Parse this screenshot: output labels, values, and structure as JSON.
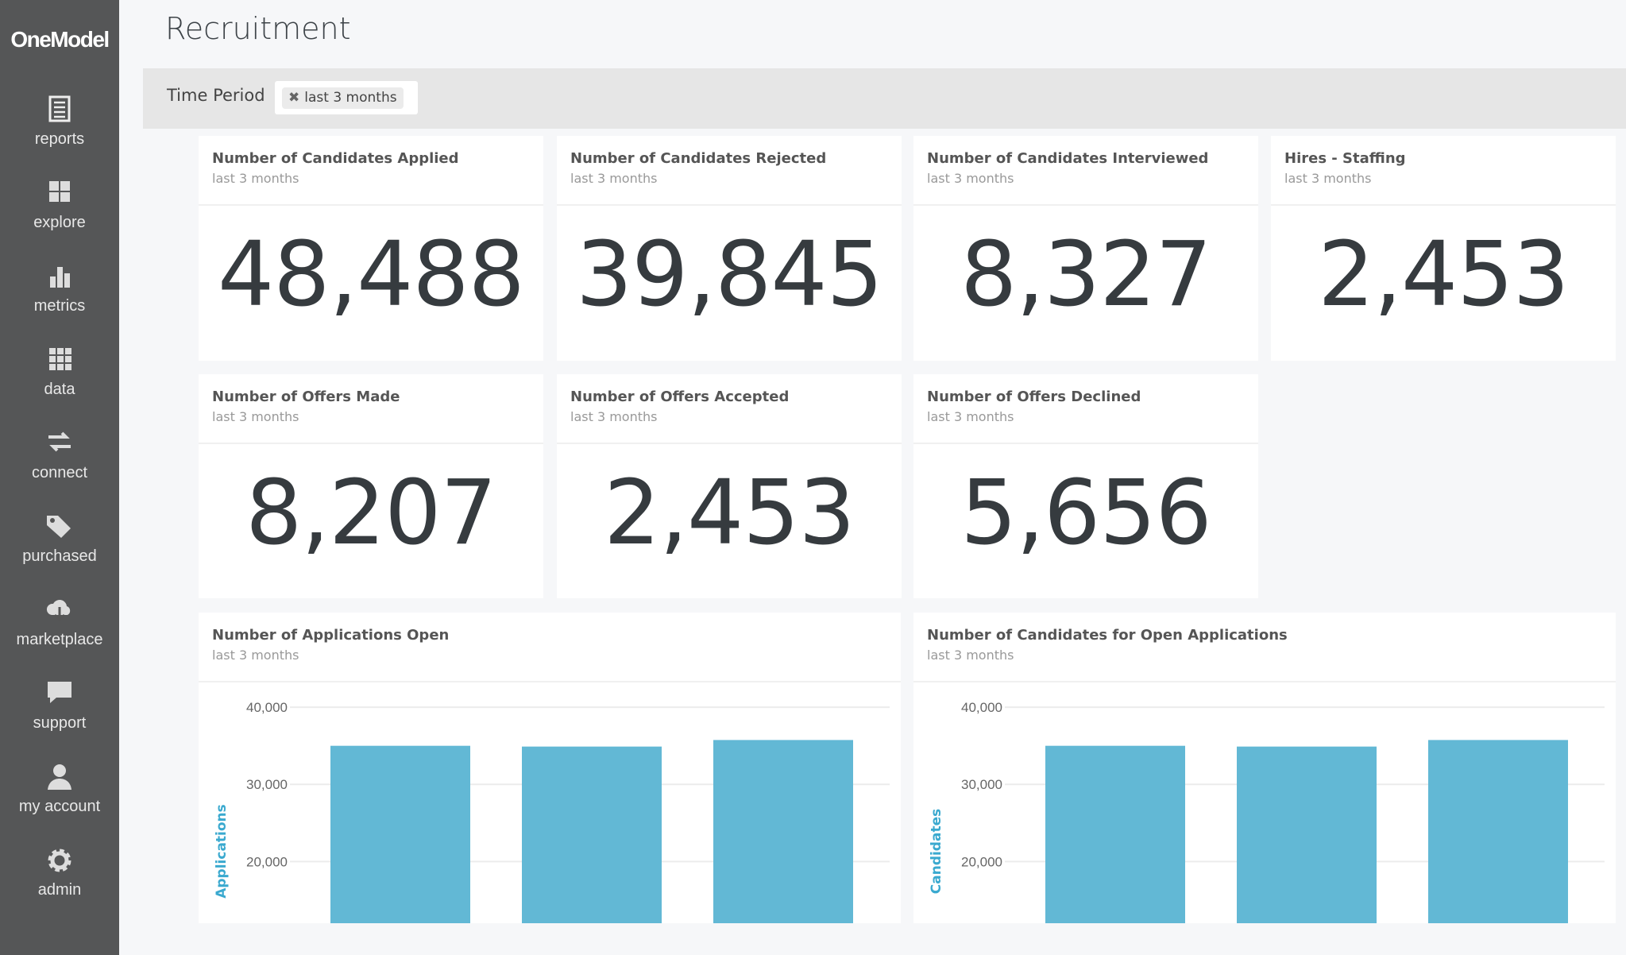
{
  "app": {
    "logo": "OneModel"
  },
  "sidebar": {
    "items": [
      {
        "label": "reports",
        "icon": "reports-icon"
      },
      {
        "label": "explore",
        "icon": "grid-icon"
      },
      {
        "label": "metrics",
        "icon": "bar-chart-icon"
      },
      {
        "label": "data",
        "icon": "data-grid-icon"
      },
      {
        "label": "connect",
        "icon": "arrows-icon"
      },
      {
        "label": "purchased",
        "icon": "tag-icon"
      },
      {
        "label": "marketplace",
        "icon": "cloud-download-icon"
      },
      {
        "label": "support",
        "icon": "chat-icon"
      },
      {
        "label": "my account",
        "icon": "user-icon"
      },
      {
        "label": "admin",
        "icon": "gear-icon"
      }
    ]
  },
  "page": {
    "title": "Recruitment"
  },
  "filter": {
    "label": "Time Period",
    "chip": "last 3 months"
  },
  "tiles": [
    {
      "title": "Number of Candidates Applied",
      "sub": "last 3 months",
      "value": "48,488"
    },
    {
      "title": "Number of Candidates Rejected",
      "sub": "last 3 months",
      "value": "39,845"
    },
    {
      "title": "Number of Candidates Interviewed",
      "sub": "last 3 months",
      "value": "8,327"
    },
    {
      "title": "Hires - Staffing",
      "sub": "last 3 months",
      "value": "2,453"
    },
    {
      "title": "Number of Offers Made",
      "sub": "last 3 months",
      "value": "8,207"
    },
    {
      "title": "Number of Offers Accepted",
      "sub": "last 3 months",
      "value": "2,453"
    },
    {
      "title": "Number of Offers Declined",
      "sub": "last 3 months",
      "value": "5,656"
    }
  ],
  "chart_data": [
    {
      "type": "bar",
      "title": "Number of Applications Open",
      "sub": "last 3 months",
      "ylabel": "Applications",
      "yticks": [
        "40,000",
        "30,000",
        "20,000"
      ],
      "tickvals": [
        40000,
        30000,
        20000
      ],
      "ylim": [
        12000,
        43000
      ],
      "values": [
        35000,
        34900,
        35750
      ],
      "color": "#62b8d5"
    },
    {
      "type": "bar",
      "title": "Number of Candidates for Open Applications",
      "sub": "last 3 months",
      "ylabel": "Candidates",
      "yticks": [
        "40,000",
        "30,000",
        "20,000"
      ],
      "tickvals": [
        40000,
        30000,
        20000
      ],
      "ylim": [
        12000,
        43000
      ],
      "values": [
        35000,
        34900,
        35750
      ],
      "color": "#62b8d5"
    }
  ]
}
